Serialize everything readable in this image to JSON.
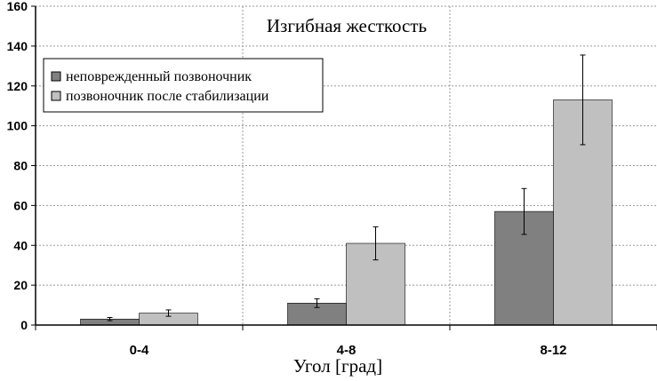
{
  "chart_data": {
    "type": "bar",
    "title": "Изгибная жесткость",
    "xlabel": "Угол [град]",
    "ylabel": "",
    "ylim": [
      0,
      160
    ],
    "yticks": [
      0,
      20,
      40,
      60,
      80,
      100,
      120,
      140,
      160
    ],
    "categories": [
      "0-4",
      "4-8",
      "8-12"
    ],
    "grid": {
      "y": true,
      "x_category_separators": true,
      "style": "dashed"
    },
    "legend_position": "top-left",
    "series": [
      {
        "name": "неповрежденный позвоночник",
        "color": "#808080",
        "values": [
          3,
          11,
          57
        ],
        "errors": [
          0.8,
          2.2,
          11.5
        ]
      },
      {
        "name": "позвоночник после стабилизации",
        "color": "#c0c0c0",
        "values": [
          6,
          41,
          113
        ],
        "errors": [
          1.6,
          8.3,
          22.5
        ]
      }
    ]
  }
}
